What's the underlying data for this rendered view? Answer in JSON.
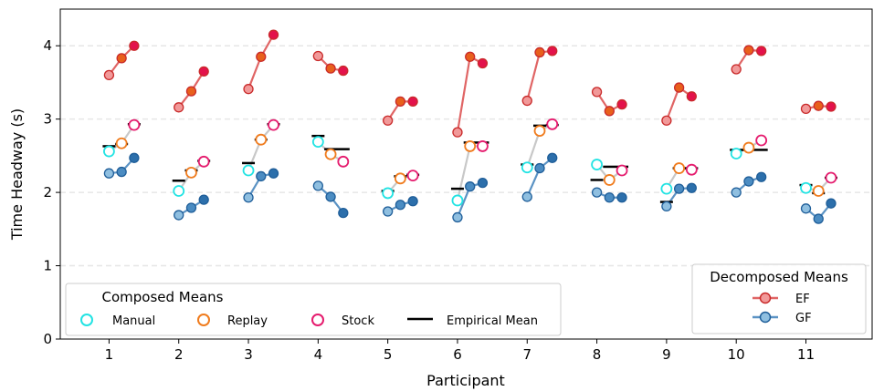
{
  "chart_data": {
    "type": "scatter",
    "xlabel": "Participant",
    "ylabel": "Time Headway (s)",
    "xlim": [
      0.3,
      11.95
    ],
    "ylim": [
      0,
      4.5
    ],
    "yticks": [
      0,
      1,
      2,
      3,
      4
    ],
    "categories": [
      "1",
      "2",
      "3",
      "4",
      "5",
      "6",
      "7",
      "8",
      "9",
      "10",
      "11"
    ],
    "grid": "horizontal dashed",
    "conditions": [
      "Manual",
      "Replay",
      "Stock"
    ],
    "ef": [
      [
        3.6,
        3.83,
        4.0
      ],
      [
        3.16,
        3.38,
        3.65
      ],
      [
        3.41,
        3.85,
        4.15
      ],
      [
        3.86,
        3.69,
        3.66
      ],
      [
        2.98,
        3.24,
        3.24
      ],
      [
        2.82,
        3.85,
        3.76
      ],
      [
        3.25,
        3.91,
        3.93
      ],
      [
        3.37,
        3.11,
        3.2
      ],
      [
        2.98,
        3.43,
        3.31
      ],
      [
        3.68,
        3.94,
        3.93
      ],
      [
        3.14,
        3.18,
        3.17
      ]
    ],
    "gf": [
      [
        2.26,
        2.28,
        2.47
      ],
      [
        1.69,
        1.79,
        1.9
      ],
      [
        1.93,
        2.22,
        2.26
      ],
      [
        2.09,
        1.94,
        1.72
      ],
      [
        1.74,
        1.83,
        1.88
      ],
      [
        1.66,
        2.08,
        2.13
      ],
      [
        1.94,
        2.33,
        2.47
      ],
      [
        2.0,
        1.93,
        1.93
      ],
      [
        1.81,
        2.05,
        2.06
      ],
      [
        2.0,
        2.15,
        2.21
      ],
      [
        1.78,
        1.64,
        1.85
      ]
    ],
    "composed": [
      [
        2.56,
        2.67,
        2.92
      ],
      [
        2.02,
        2.27,
        2.42
      ],
      [
        2.3,
        2.72,
        2.92
      ],
      [
        2.69,
        2.52,
        2.42
      ],
      [
        1.99,
        2.19,
        2.23
      ],
      [
        1.89,
        2.63,
        2.63
      ],
      [
        2.34,
        2.84,
        2.93
      ],
      [
        2.38,
        2.17,
        2.3
      ],
      [
        2.05,
        2.33,
        2.31
      ],
      [
        2.53,
        2.61,
        2.71
      ],
      [
        2.06,
        2.02,
        2.2
      ]
    ],
    "empirical": [
      [
        2.63,
        2.66,
        2.93
      ],
      [
        2.16,
        2.3,
        2.43
      ],
      [
        2.4,
        2.72,
        2.93
      ],
      [
        2.77,
        2.59,
        2.59
      ],
      [
        2.02,
        2.22,
        2.24
      ],
      [
        2.05,
        2.68,
        2.68
      ],
      [
        2.38,
        2.91,
        2.92
      ],
      [
        2.17,
        2.35,
        2.35
      ],
      [
        1.87,
        2.33,
        2.33
      ],
      [
        2.58,
        2.58,
        2.58
      ],
      [
        2.1,
        1.99,
        2.2
      ]
    ],
    "legend_composed": {
      "title": "Composed Means",
      "items": [
        "Manual",
        "Replay",
        "Stock",
        "Empirical Mean"
      ]
    },
    "legend_decomposed": {
      "title": "Decomposed Means",
      "items": [
        "EF",
        "GF"
      ]
    },
    "colors": {
      "manual": "#22e3e3",
      "replay": "#f07c1e",
      "stock": "#e51c6e",
      "ef_line": "#e06565",
      "ef_face_manual": "#f19999",
      "ef_face_replay": "#e8601c",
      "ef_face_stock": "#e3124b",
      "ef_edge": "#c92a2a",
      "gf_line": "#5b93c4",
      "gf_face_manual": "#8fbfe0",
      "gf_face_replay": "#4b8cc2",
      "gf_face_stock": "#2c6fab",
      "gf_edge": "#1f5e99",
      "composed_line": "#c8c8c8",
      "empirical": "#000000"
    }
  }
}
